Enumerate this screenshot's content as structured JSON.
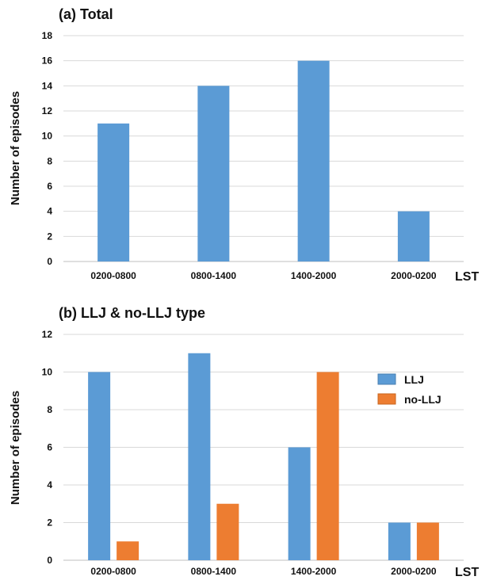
{
  "chart_data": [
    {
      "type": "bar",
      "title": "(a) Total",
      "ylabel": "Number of episodes",
      "xlabel_unit": "LST",
      "categories": [
        "0200-0800",
        "0800-1400",
        "1400-2000",
        "2000-0200"
      ],
      "series": [
        {
          "values": [
            11,
            14,
            16,
            4
          ],
          "color": "#5b9bd5"
        }
      ],
      "ylim": [
        0,
        18
      ],
      "yticks": [
        0,
        2,
        4,
        6,
        8,
        10,
        12,
        14,
        16,
        18
      ],
      "grid": true
    },
    {
      "type": "bar",
      "title": "(b) LLJ & no-LLJ type",
      "ylabel": "Number of episodes",
      "xlabel_unit": "LST",
      "categories": [
        "0200-0800",
        "0800-1400",
        "1400-2000",
        "2000-0200"
      ],
      "series": [
        {
          "name": "LLJ",
          "values": [
            10,
            11,
            6,
            2
          ],
          "color": "#5b9bd5"
        },
        {
          "name": "no-LLJ",
          "values": [
            1,
            3,
            10,
            2
          ],
          "color": "#ed7d31"
        }
      ],
      "ylim": [
        0,
        12
      ],
      "yticks": [
        0,
        2,
        4,
        6,
        8,
        10,
        12
      ],
      "grid": true,
      "legend": "right"
    }
  ]
}
